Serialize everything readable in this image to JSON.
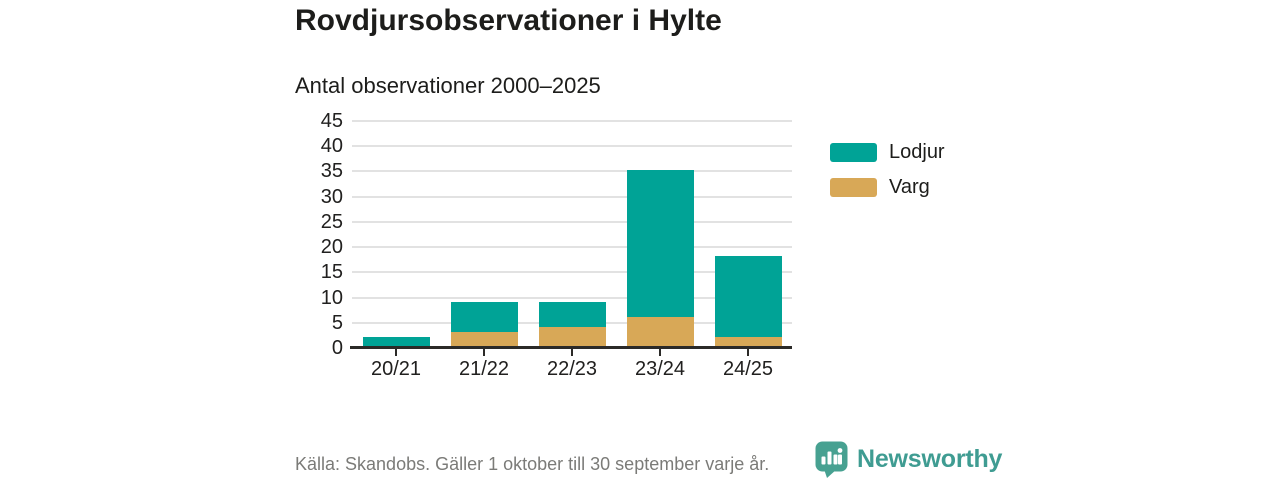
{
  "title": "Rovdjursobservationer i Hylte",
  "subtitle": "Antal observationer 2000–2025",
  "legend": [
    {
      "label": "Lodjur",
      "color": "#00a396"
    },
    {
      "label": "Varg",
      "color": "#d8a857"
    }
  ],
  "footer": {
    "source": "Källa: Skandobs. Gäller 1 oktober till 30 september varje år.",
    "brand": "Newsworthy"
  },
  "colors": {
    "lodjur": "#00a396",
    "varg": "#d8a857",
    "axis_text": "#21201f",
    "grid": "#e2e2e2",
    "baseline": "#2b2a28",
    "source_text": "#7b7b78",
    "brand_teal": "#3f9c92",
    "logo_icon_teal": "#47a191"
  },
  "chart_data": {
    "type": "bar",
    "stacked": true,
    "title": "Antal observationer 2000–2025",
    "categories": [
      "20/21",
      "21/22",
      "22/23",
      "23/24",
      "24/25"
    ],
    "series": [
      {
        "name": "Lodjur",
        "color": "#00a396",
        "values": [
          2,
          6,
          5,
          29,
          16
        ]
      },
      {
        "name": "Varg",
        "color": "#d8a857",
        "values": [
          0,
          3,
          4,
          6,
          2
        ]
      }
    ],
    "stack_bottom_to_top": [
      "Varg",
      "Lodjur"
    ],
    "totals": [
      2,
      9,
      9,
      35,
      18
    ],
    "xlabel": "",
    "ylabel": "",
    "ylim": [
      0,
      45
    ],
    "yticks": [
      0,
      5,
      10,
      15,
      20,
      25,
      30,
      35,
      40,
      45
    ],
    "grid": true,
    "legend_position": "right"
  }
}
